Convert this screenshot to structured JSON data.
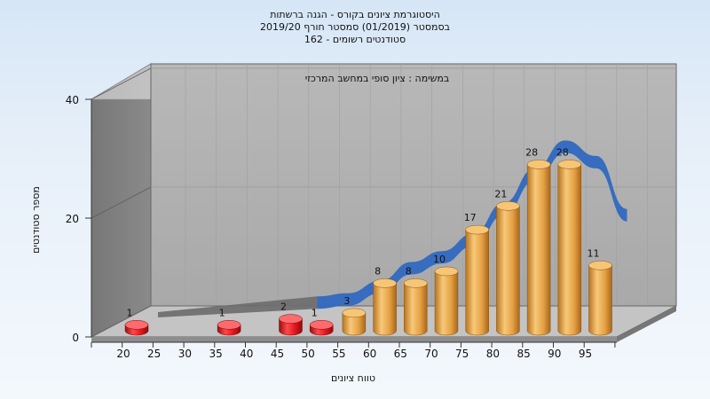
{
  "chart_data": {
    "type": "bar",
    "title_lines": [
      "היסטוגרמת ציונים בקורס - הגנה ברשתות",
      "בסמסטר  (01/2019)  סמסטר חורף 2019/20",
      "סטודנטים רשומים - 162"
    ],
    "subtitle": "במשימה : ציון סופי במחשב המרכזי",
    "xlabel": "טווח ציונים",
    "ylabel": "מספר סטודנטים",
    "ylim": [
      0,
      40
    ],
    "yticks": [
      "0",
      "20",
      "40"
    ],
    "categories": [
      "20",
      "25",
      "30",
      "35",
      "40",
      "45",
      "50",
      "55",
      "60",
      "65",
      "70",
      "75",
      "80",
      "85",
      "90",
      "95"
    ],
    "values": [
      1,
      0,
      0,
      1,
      0,
      2,
      1,
      3,
      8,
      8,
      10,
      17,
      21,
      28,
      28,
      11
    ],
    "low_color": "#e0151b",
    "pass_color": "#e8a446",
    "curve_color": "#3068c0",
    "grid": true,
    "legend": "none",
    "style": "3d-cylinders-with-smoothed-band"
  }
}
